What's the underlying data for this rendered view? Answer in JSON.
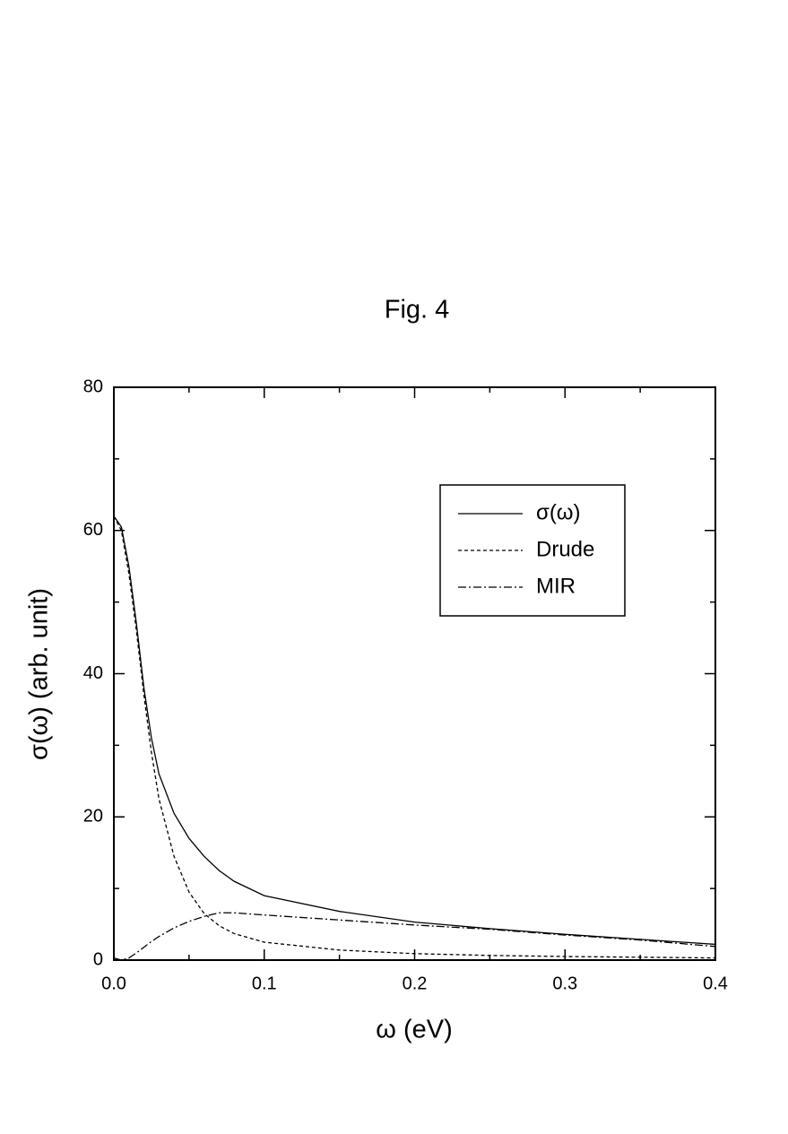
{
  "chart_data": {
    "type": "line",
    "title": "Fig. 4",
    "xlabel": "ω (eV)",
    "ylabel": "σ(ω) (arb. unit)",
    "x": [
      0,
      0.005,
      0.01,
      0.015,
      0.02,
      0.025,
      0.03,
      0.04,
      0.05,
      0.06,
      0.07,
      0.08,
      0.1,
      0.15,
      0.2,
      0.25,
      0.3,
      0.35,
      0.4
    ],
    "series": [
      {
        "name": "σ(ω)",
        "color": "#000000",
        "dash": "none",
        "values": [
          62,
          60.5,
          55,
          47,
          38,
          31,
          26,
          20.5,
          17,
          14.5,
          12.5,
          11,
          9,
          6.8,
          5.3,
          4.4,
          3.6,
          2.9,
          2.2
        ]
      },
      {
        "name": "Drude",
        "color": "#000000",
        "dash": "4,3",
        "values": [
          62,
          60,
          54,
          46,
          37,
          29,
          22.5,
          14.5,
          9.5,
          6.5,
          4.8,
          3.7,
          2.5,
          1.4,
          0.9,
          0.65,
          0.5,
          0.4,
          0.3
        ]
      },
      {
        "name": "MIR",
        "color": "#000000",
        "dash": "9,3,2,3",
        "values": [
          0.3,
          0,
          0.3,
          1,
          1.8,
          2.6,
          3.3,
          4.5,
          5.4,
          6.1,
          6.6,
          6.6,
          6.3,
          5.6,
          4.9,
          4.3,
          3.5,
          2.8,
          1.9
        ]
      }
    ],
    "xlim": [
      0,
      0.4
    ],
    "ylim": [
      0,
      80
    ],
    "xticks": [
      {
        "value": 0,
        "label": "0.0"
      },
      0.1,
      0.2,
      0.3,
      0.4
    ],
    "yticks": [
      0,
      20,
      40,
      60,
      80
    ],
    "xminorticks": [
      0.05,
      0.15,
      0.25,
      0.35
    ],
    "yminorticks": [
      10,
      30,
      50,
      70
    ],
    "legend": "upper right",
    "grid": false
  }
}
